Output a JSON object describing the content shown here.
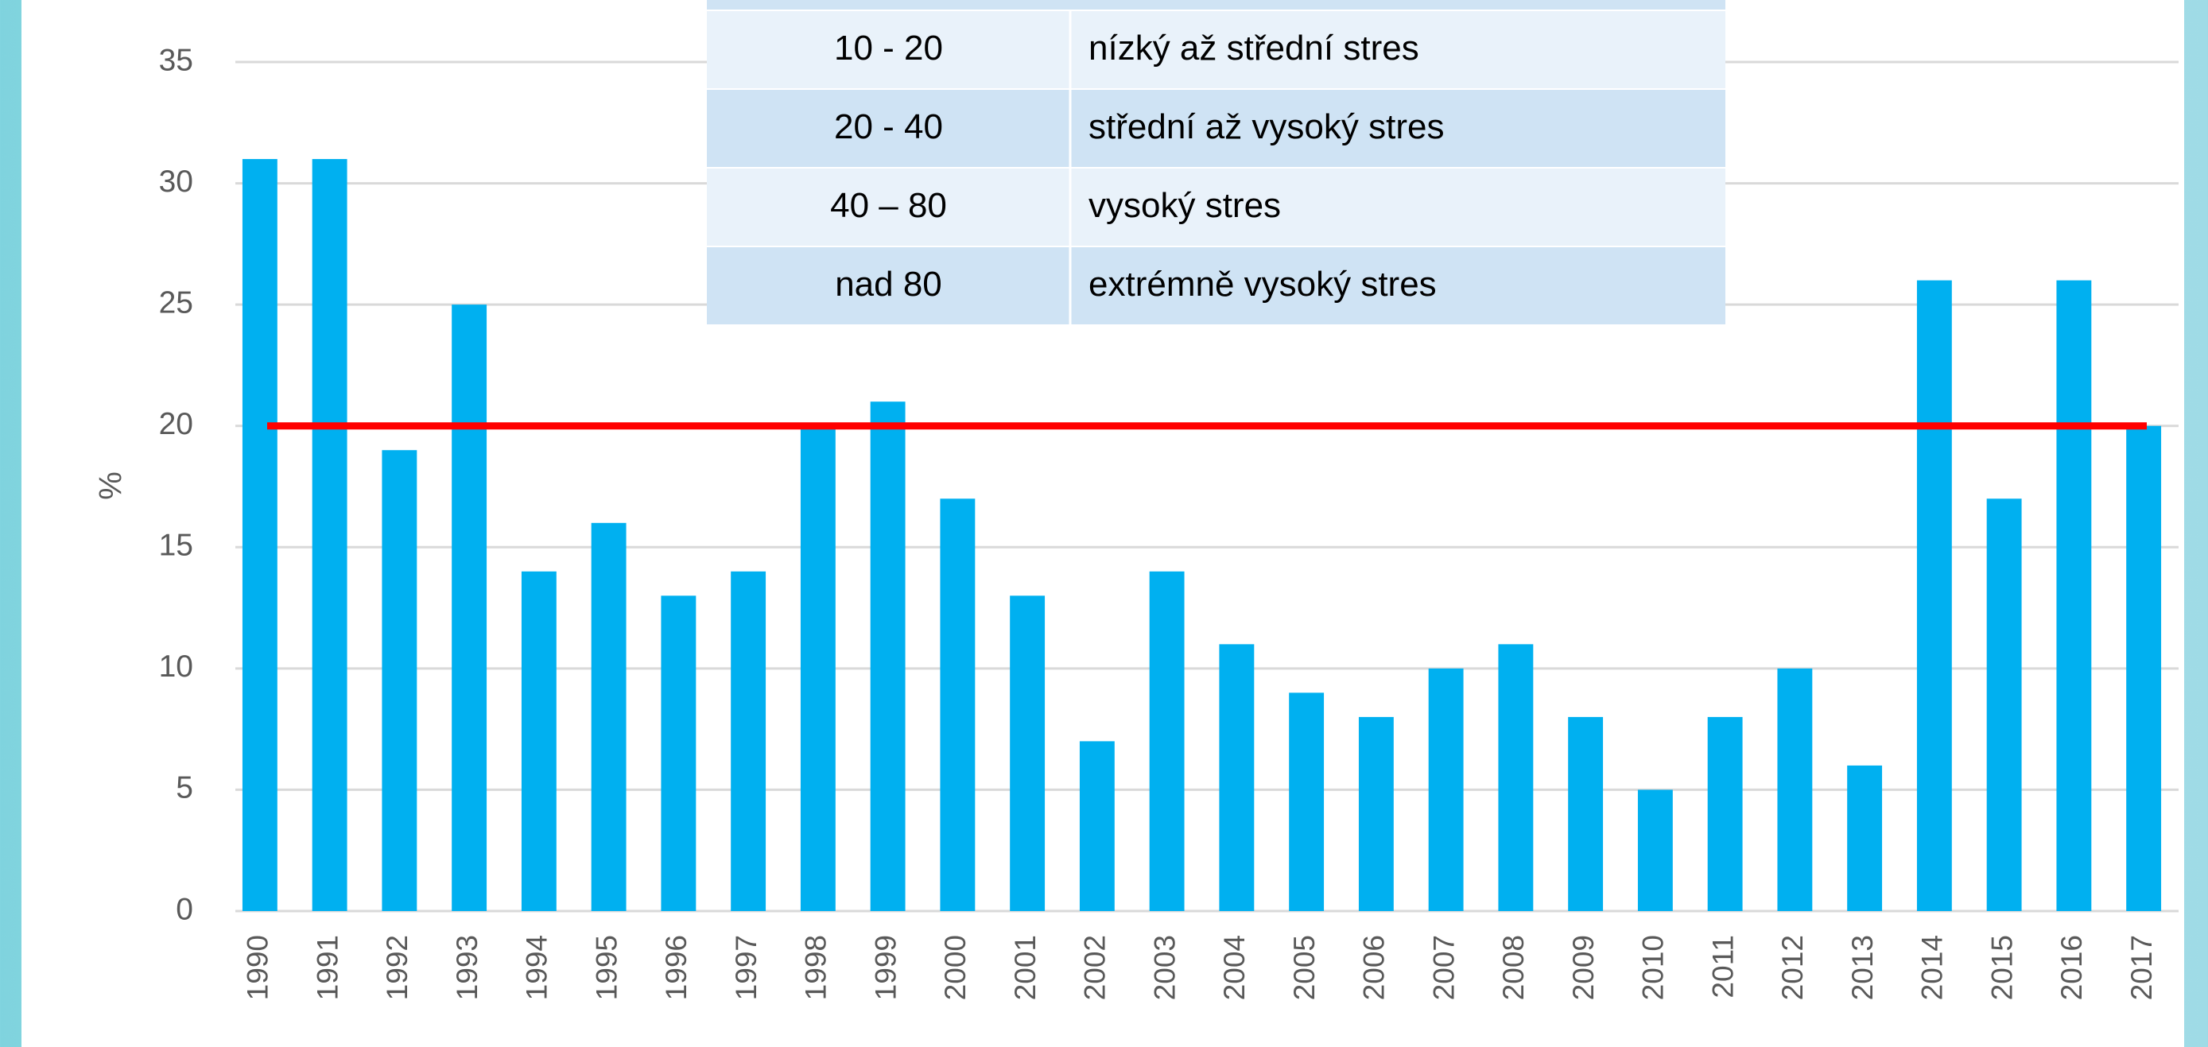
{
  "chart_data": {
    "type": "bar",
    "y_label": "%",
    "categories": [
      "1990",
      "1991",
      "1992",
      "1993",
      "1994",
      "1995",
      "1996",
      "1997",
      "1998",
      "1999",
      "2000",
      "2001",
      "2002",
      "2003",
      "2004",
      "2005",
      "2006",
      "2007",
      "2008",
      "2009",
      "2010",
      "2011",
      "2012",
      "2013",
      "2014",
      "2015",
      "2016",
      "2017"
    ],
    "values": [
      31,
      31,
      19,
      25,
      14,
      16,
      13,
      14,
      20,
      21,
      17,
      13,
      7,
      14,
      11,
      9,
      8,
      10,
      11,
      8,
      5,
      8,
      10,
      6,
      26,
      17,
      26,
      20
    ],
    "color": "#00b0f0",
    "ylim": [
      0,
      35
    ],
    "yticks": [
      0,
      5,
      10,
      15,
      20,
      25,
      30,
      35
    ],
    "grid": true,
    "reference_line": {
      "value": 20,
      "color": "#ff0000"
    }
  },
  "table": {
    "rows": [
      [
        "10 - 20",
        "nízký až střední stres"
      ],
      [
        "20 - 40",
        "střední až vysoký stres"
      ],
      [
        "40 – 80",
        "vysoký stres"
      ],
      [
        "nad 80",
        "extrémně vysoký stres"
      ]
    ]
  }
}
